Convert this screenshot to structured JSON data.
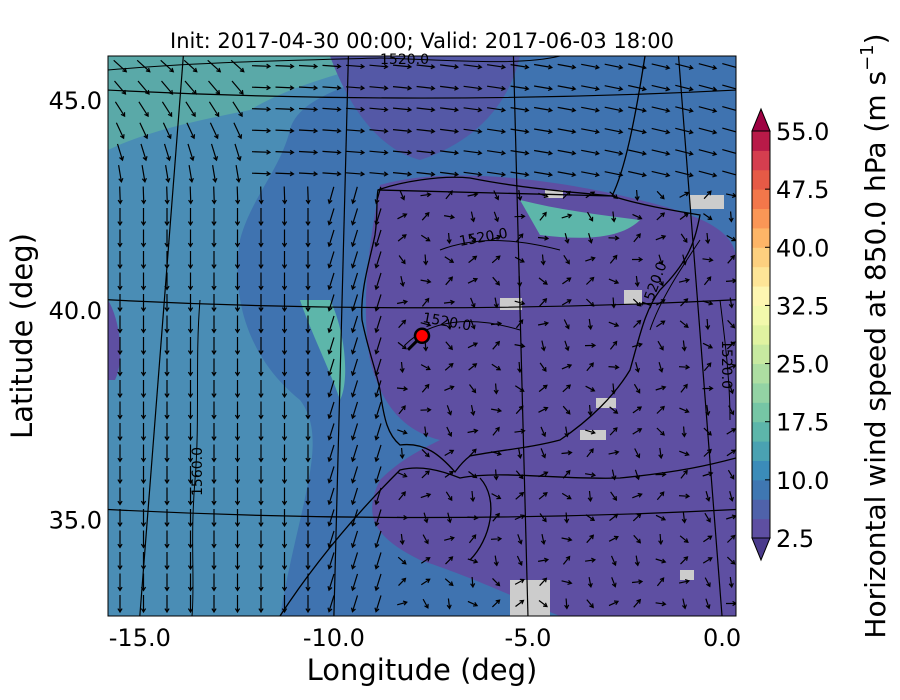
{
  "chart_data": {
    "type": "map",
    "title": "Init: 2017-04-30 00:00; Valid: 2017-06-03 18:00",
    "x_label": "Longitude (deg)",
    "y_label": "Latitude (deg)",
    "xlim": [
      -15.82,
      0.36
    ],
    "ylim": [
      32.7,
      46.05
    ],
    "xticks": [
      {
        "value": -15,
        "label": "-15.0"
      },
      {
        "value": -10,
        "label": "-10.0"
      },
      {
        "value": -5,
        "label": "-5.0"
      },
      {
        "value": 0,
        "label": "0.0"
      }
    ],
    "yticks": [
      {
        "value": 35,
        "label": "35.0"
      },
      {
        "value": 40,
        "label": "40.0"
      },
      {
        "value": 45,
        "label": "45.0"
      }
    ],
    "grid": true,
    "marker": {
      "lon": -7.73,
      "lat": 39.38,
      "color": "#ff0000"
    },
    "contour_labels": [
      "1520.0",
      "1520.0",
      "1520.0",
      "1520.0",
      "1520.0",
      "1560.0"
    ],
    "colorbar": {
      "label": [
        "Horizontal wind speed at 850.0 hPa (m s",
        "−1",
        ")"
      ],
      "clim": [
        2.5,
        55
      ],
      "ticks": [
        2.5,
        {
          "value": 10,
          "label": "10.0"
        },
        17.5,
        {
          "value": 25,
          "label": "25.0"
        },
        32.5,
        {
          "value": 40,
          "label": "40.0"
        },
        47.5,
        {
          "value": 55,
          "label": "55.0"
        }
      ],
      "colors": [
        "#5e4fa2",
        "#4f62aa",
        "#3f77b2",
        "#3b8cb9",
        "#4aa2b2",
        "#5db6aa",
        "#76c6a5",
        "#93d3a4",
        "#addea2",
        "#c7e9a0",
        "#e0f3a1",
        "#f2f9ac",
        "#fef6b1",
        "#fee597",
        "#fdd07f",
        "#fdb567",
        "#fa9656",
        "#f3774a",
        "#e65a46",
        "#d53e4f",
        "#b81a48"
      ],
      "extend_colors": [
        "#4a3a8c",
        "#9e0142"
      ]
    }
  }
}
